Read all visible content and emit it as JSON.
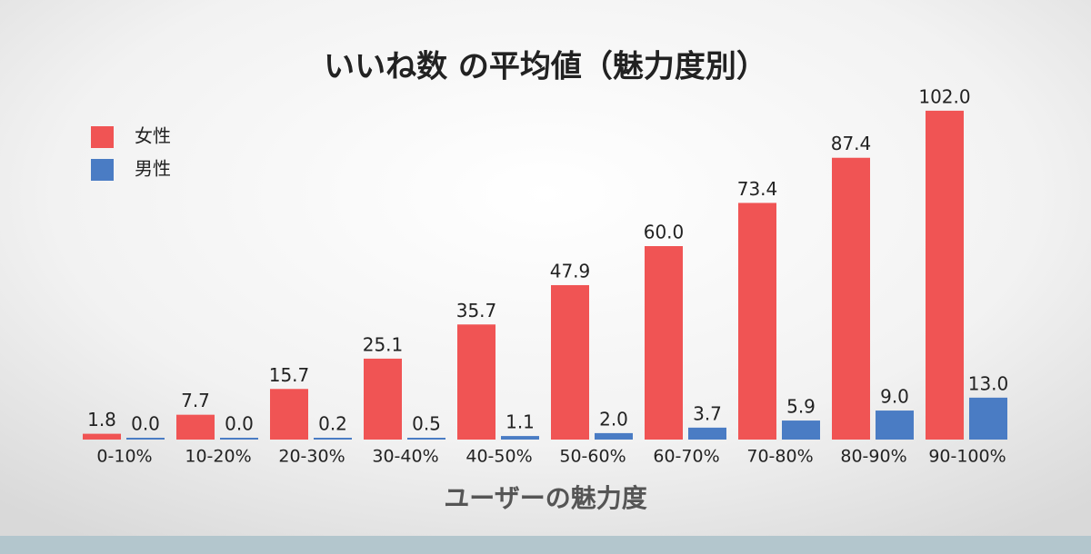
{
  "chart_data": {
    "type": "bar",
    "title": "いいね数 の平均値（魅力度別）",
    "x_label": "ユーザーの魅力度",
    "categories": [
      "0-10%",
      "10-20%",
      "20-30%",
      "30-40%",
      "40-50%",
      "50-60%",
      "60-70%",
      "70-80%",
      "80-90%",
      "90-100%"
    ],
    "series": [
      {
        "name": "女性",
        "color": "#f05454",
        "values": [
          1.8,
          7.7,
          15.7,
          25.1,
          35.7,
          47.9,
          60.0,
          73.4,
          87.4,
          102.0
        ],
        "value_labels": [
          "1.8",
          "7.7",
          "15.7",
          "25.1",
          "35.7",
          "47.9",
          "60.0",
          "73.4",
          "87.4",
          "102.0"
        ]
      },
      {
        "name": "男性",
        "color": "#4a7cc4",
        "values": [
          0.0,
          0.0,
          0.2,
          0.5,
          1.1,
          2.0,
          3.7,
          5.9,
          9.0,
          13.0
        ],
        "value_labels": [
          "0.0",
          "0.0",
          "0.2",
          "0.5",
          "1.1",
          "2.0",
          "3.7",
          "5.9",
          "9.0",
          "13.0"
        ]
      }
    ],
    "legend": "top-left"
  }
}
